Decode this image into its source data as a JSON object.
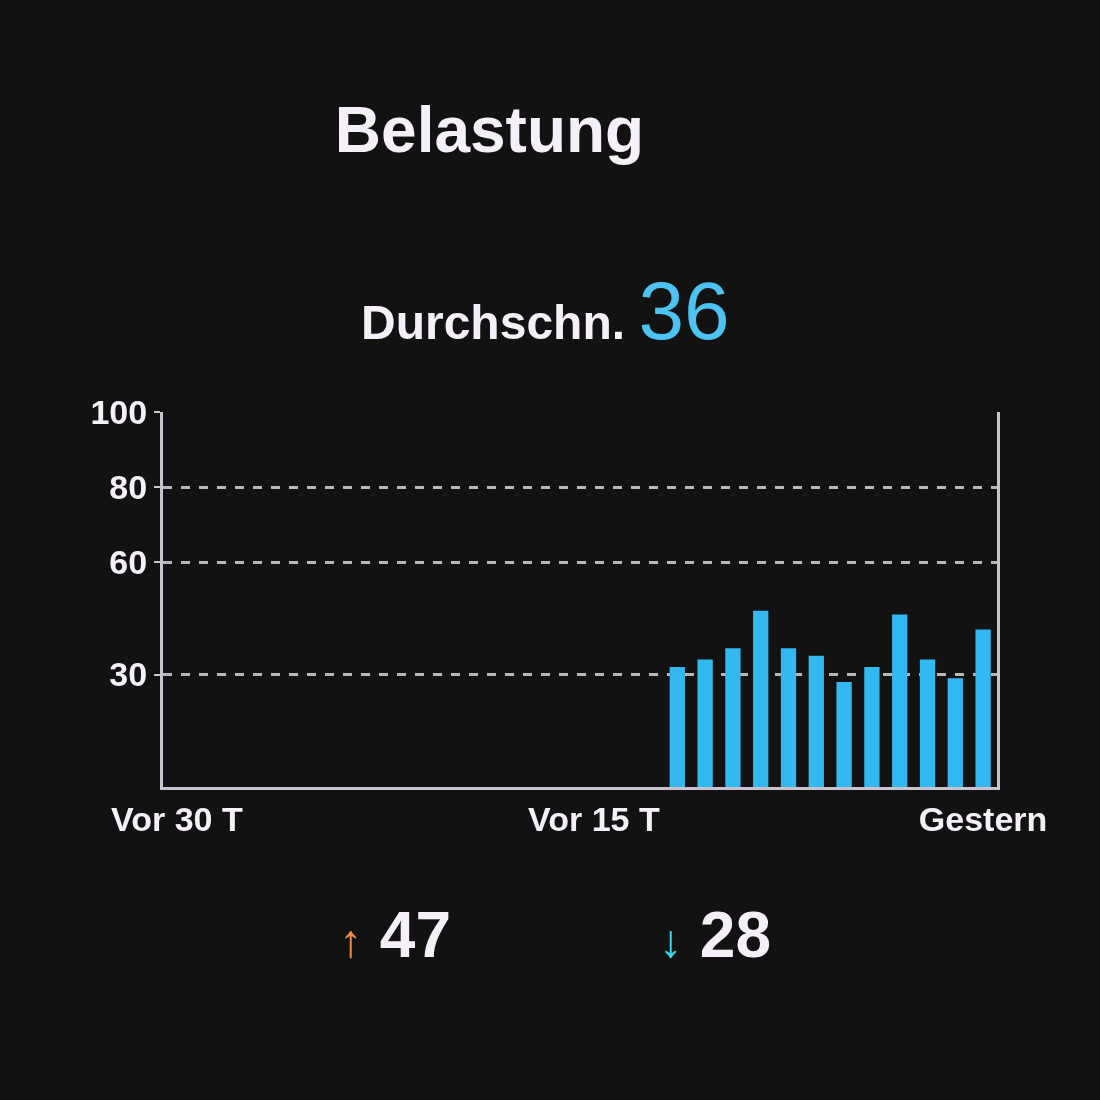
{
  "chart_data": {
    "type": "bar",
    "title": "Belastung",
    "subtitle": "Durchschn. 36",
    "categories": [
      "Vor 30 T",
      null,
      null,
      null,
      null,
      null,
      null,
      null,
      null,
      null,
      null,
      null,
      null,
      null,
      null,
      "Vor 15 T",
      null,
      null,
      null,
      null,
      null,
      null,
      null,
      null,
      null,
      null,
      null,
      null,
      null,
      "Gestern"
    ],
    "values": [
      null,
      null,
      null,
      null,
      null,
      null,
      null,
      null,
      null,
      null,
      null,
      null,
      null,
      null,
      null,
      null,
      null,
      null,
      32,
      34,
      37,
      47,
      37,
      35,
      28,
      32,
      46,
      34,
      29,
      42
    ],
    "color": "#33b8f0",
    "ylim": [
      0,
      100
    ],
    "yticks": [
      30,
      60,
      80,
      100
    ],
    "grid": "y",
    "annotations": [
      "↑ 47",
      "↓ 28"
    ]
  }
}
